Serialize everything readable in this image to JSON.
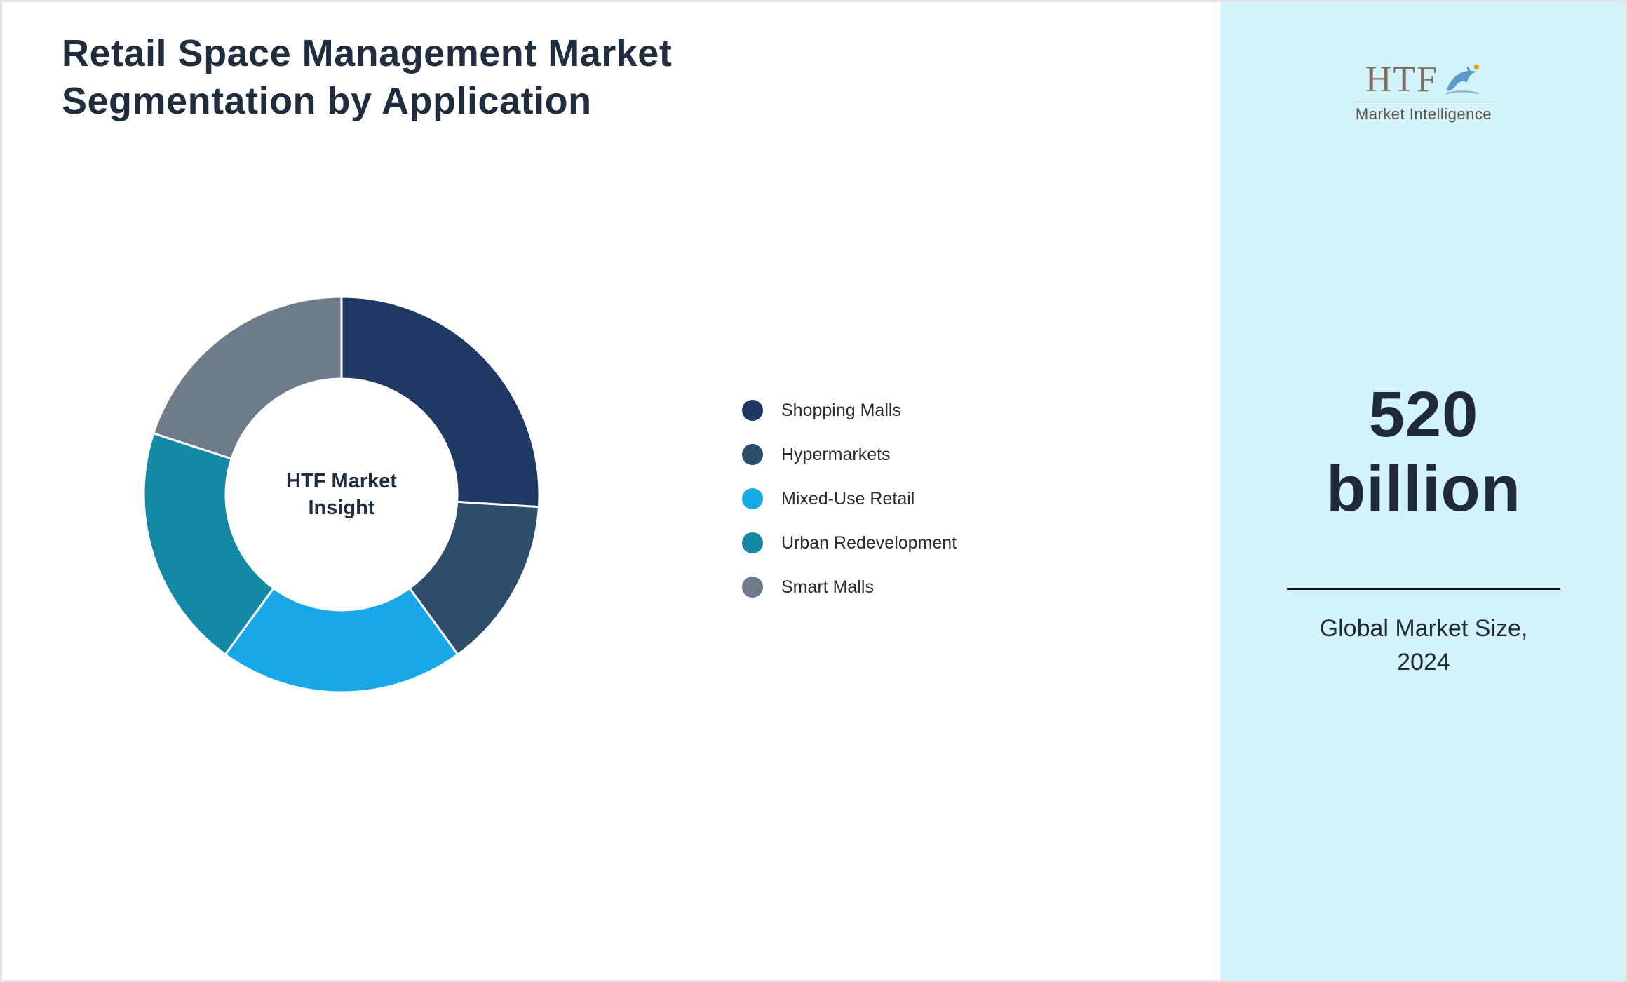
{
  "title": "Retail Space Management Market Segmentation by Application",
  "title_lines": [
    "Retail Space Management Market",
    "Segmentation by Application"
  ],
  "chart_data": {
    "type": "pie",
    "subtype": "donut",
    "title": "Retail Space Management Market Segmentation by Application",
    "center_label": "HTF Market Insight",
    "center_label_lines": [
      "HTF Market",
      "Insight"
    ],
    "start_angle_deg": 0,
    "direction": "clockwise",
    "legend_position": "right",
    "units": "percent (estimated from arc angles; no data labels shown)",
    "segments": [
      {
        "label": "Shopping Malls",
        "value": 26,
        "color": "#1F3864"
      },
      {
        "label": "Hypermarkets",
        "value": 14,
        "color": "#2E4D6B"
      },
      {
        "label": "Mixed-Use Retail",
        "value": 20,
        "color": "#18A8E8"
      },
      {
        "label": "Urban Redevelopment",
        "value": 20,
        "color": "#1389A6"
      },
      {
        "label": "Smart Malls",
        "value": 20,
        "color": "#6E7B8A"
      }
    ]
  },
  "sidebar": {
    "background_color": "#D3F3FB",
    "logo": {
      "text": "HTF",
      "subtext": "Market Intelligence"
    },
    "stat": {
      "value_line1": "520",
      "value_line2": "billion",
      "caption_line1": "Global Market Size,",
      "caption_line2": "2024"
    }
  }
}
